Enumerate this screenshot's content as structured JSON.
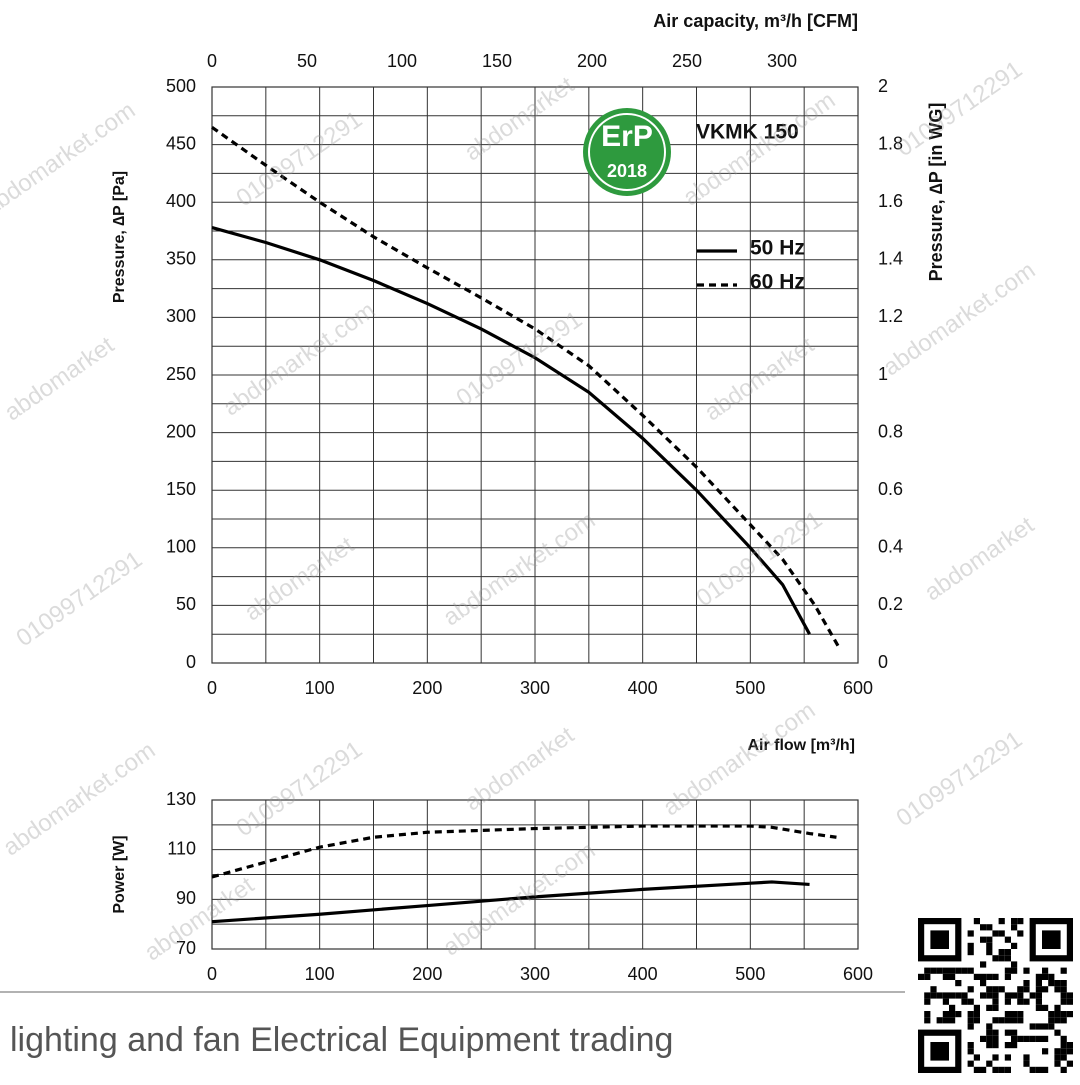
{
  "chart_data": [
    {
      "type": "line",
      "title": "VKMK 150",
      "xlabel": "Air flow [m³/h]",
      "ylabel": "Pressure, ∆P [Pa]",
      "x2label": "Air capacity, m³/h [CFM]",
      "y2label": "Pressure, ∆P [in WG]",
      "xlim": [
        0,
        600
      ],
      "xticks": [
        0,
        100,
        200,
        300,
        400,
        500,
        600
      ],
      "ylim": [
        0,
        500
      ],
      "yticks": [
        0,
        50,
        100,
        150,
        200,
        250,
        300,
        350,
        400,
        450,
        500
      ],
      "x2lim": [
        0,
        340
      ],
      "x2ticks": [
        0,
        50,
        100,
        150,
        200,
        250,
        300
      ],
      "y2lim": [
        0,
        2
      ],
      "y2ticks": [
        0,
        0.2,
        0.4,
        0.6,
        0.8,
        1,
        1.2,
        1.4,
        1.6,
        1.8,
        2
      ],
      "xgrid": [
        0,
        50,
        100,
        150,
        200,
        250,
        300,
        350,
        400,
        450,
        500,
        550,
        600
      ],
      "ygrid": [
        0,
        25,
        50,
        75,
        100,
        125,
        150,
        175,
        200,
        225,
        250,
        275,
        300,
        325,
        350,
        375,
        400,
        425,
        450,
        475,
        500
      ],
      "legend": "upper right",
      "series": [
        {
          "name": "50 Hz",
          "color": "#000000",
          "line_style": "solid",
          "x": [
            0,
            50,
            100,
            150,
            200,
            250,
            300,
            350,
            400,
            450,
            500,
            530,
            555
          ],
          "values": [
            378,
            365,
            350,
            332,
            312,
            290,
            265,
            235,
            195,
            150,
            100,
            68,
            25
          ]
        },
        {
          "name": "60 Hz",
          "color": "#000000",
          "line_style": "dashed",
          "x": [
            0,
            50,
            100,
            150,
            200,
            250,
            300,
            350,
            400,
            450,
            500,
            530,
            560,
            582
          ],
          "values": [
            465,
            432,
            400,
            370,
            343,
            317,
            290,
            258,
            215,
            170,
            120,
            90,
            50,
            14
          ]
        }
      ]
    },
    {
      "type": "line",
      "ylabel": "Power [W]",
      "xlim": [
        0,
        600
      ],
      "xticks": [
        0,
        100,
        200,
        300,
        400,
        500,
        600
      ],
      "ylim": [
        70,
        130
      ],
      "yticks": [
        70,
        90,
        110,
        130
      ],
      "xgrid": [
        0,
        50,
        100,
        150,
        200,
        250,
        300,
        350,
        400,
        450,
        500,
        550,
        600
      ],
      "ygrid": [
        70,
        80,
        90,
        100,
        110,
        120,
        130
      ],
      "series": [
        {
          "name": "50 Hz",
          "color": "#000000",
          "line_style": "solid",
          "x": [
            0,
            100,
            200,
            300,
            400,
            500,
            520,
            555
          ],
          "values": [
            81,
            84,
            87.5,
            91,
            94,
            96.5,
            97,
            96
          ]
        },
        {
          "name": "60 Hz",
          "color": "#000000",
          "line_style": "dashed",
          "x": [
            0,
            50,
            100,
            150,
            200,
            300,
            400,
            500,
            520,
            555,
            580
          ],
          "values": [
            99,
            105,
            111,
            115,
            117,
            118.5,
            119.5,
            119.5,
            119,
            116.5,
            115
          ]
        }
      ]
    }
  ],
  "badge": {
    "top": "ErP",
    "bottom": "2018"
  },
  "footer": "lighting and fan Electrical Equipment trading",
  "watermarks": [
    "abdomarket.com",
    "01099712291",
    "abdomarket"
  ]
}
